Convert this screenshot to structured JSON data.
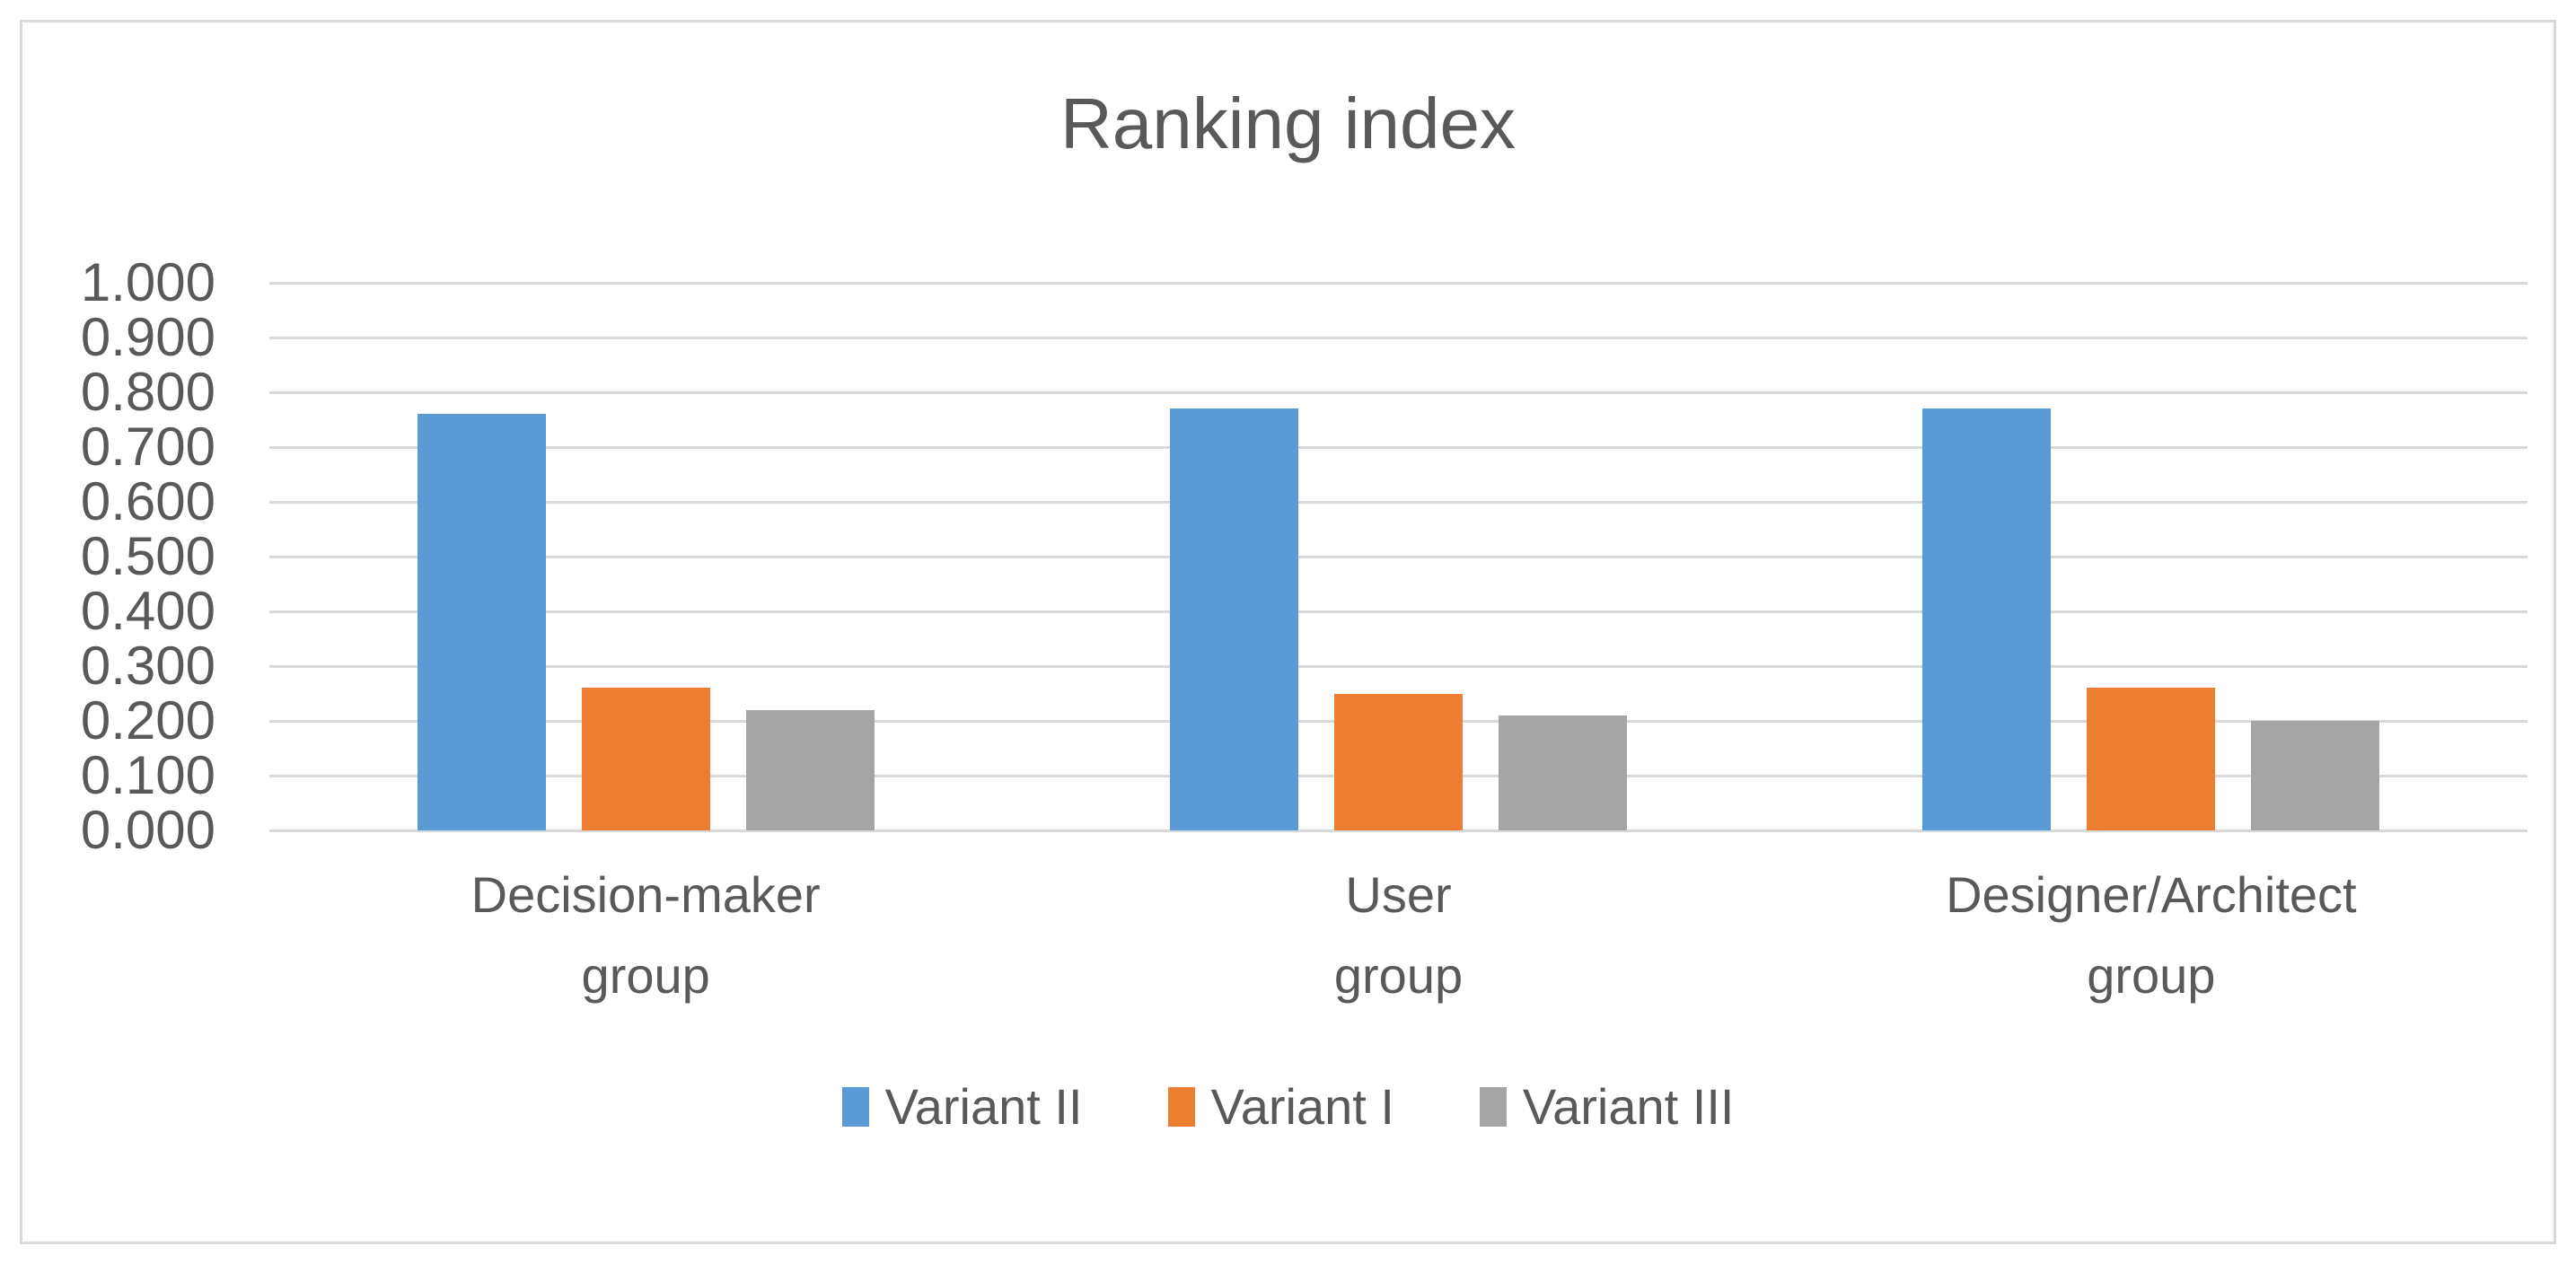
{
  "chart_data": {
    "type": "bar",
    "title": "Ranking index",
    "categories": [
      "Decision-maker group",
      "User group",
      "Designer/Architect group"
    ],
    "series": [
      {
        "name": "Variant II",
        "color": "#5B9BD5",
        "values": [
          0.76,
          0.77,
          0.77
        ]
      },
      {
        "name": "Variant I",
        "color": "#ED7D31",
        "values": [
          0.26,
          0.25,
          0.26
        ]
      },
      {
        "name": "Variant III",
        "color": "#A5A5A5",
        "values": [
          0.22,
          0.21,
          0.2
        ]
      }
    ],
    "xlabel": "",
    "ylabel": "",
    "ylim": [
      0,
      1
    ],
    "ytick_step": 0.1,
    "ytick_decimals": 3,
    "grid": true,
    "legend_position": "bottom"
  },
  "colors": {
    "text": "#595959",
    "gridline": "#D9D9D9",
    "chart_border": "#D9D9D9",
    "background": "#FFFFFF"
  }
}
